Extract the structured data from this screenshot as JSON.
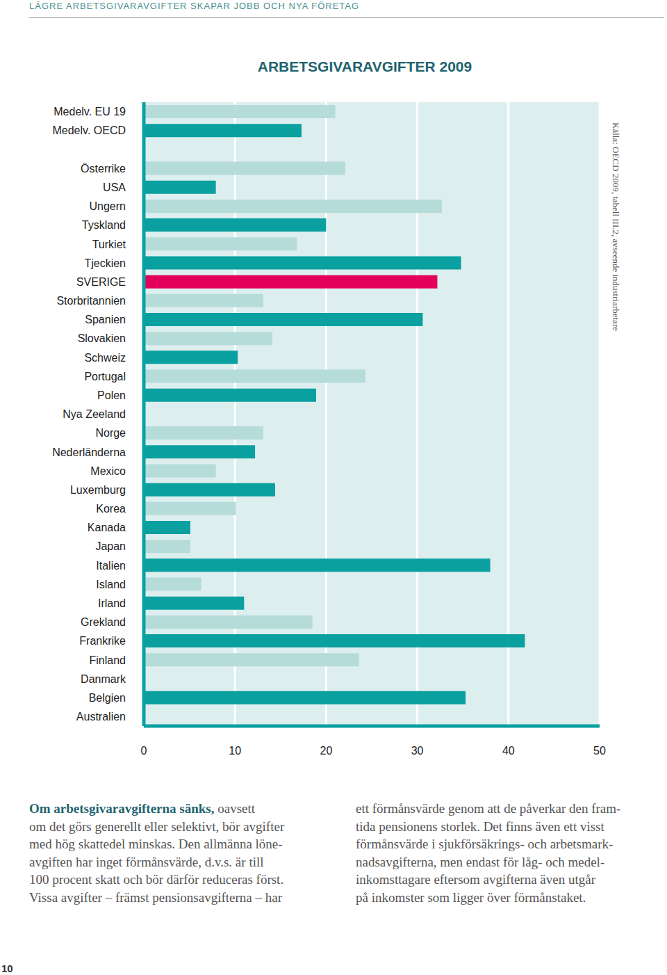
{
  "header": "LÄGRE ARBETSGIVARAVGIFTER SKAPAR JOBB OCH NYA FÖRETAG",
  "chart_data": {
    "type": "bar",
    "title": "ARBETSGIVARAVGIFTER 2009",
    "orientation": "horizontal",
    "grid": true,
    "categories": [
      "Medelv. EU 19",
      "Medelv. OECD",
      null,
      "Österrike",
      "USA",
      "Ungern",
      "Tyskland",
      "Turkiet",
      "Tjeckien",
      "SVERIGE",
      "Storbritannien",
      "Spanien",
      "Slovakien",
      "Schweiz",
      "Portugal",
      "Polen",
      "Nya Zeeland",
      "Norge",
      "Nederländerna",
      "Mexico",
      "Luxemburg",
      "Korea",
      "Kanada",
      "Japan",
      "Italien",
      "Island",
      "Irland",
      "Grekland",
      "Frankrike",
      "Finland",
      "Danmark",
      "Belgien",
      "Australien"
    ],
    "values": [
      21.0,
      17.3,
      null,
      22.1,
      7.9,
      32.7,
      20.0,
      16.8,
      34.8,
      32.2,
      13.1,
      30.6,
      14.1,
      10.3,
      24.3,
      18.9,
      0,
      13.1,
      12.2,
      7.9,
      14.4,
      10.1,
      5.1,
      5.1,
      38.0,
      6.3,
      11.0,
      18.5,
      41.8,
      23.6,
      0,
      35.3,
      0
    ],
    "colors": [
      "#b5dcd9",
      "#0aa0a0",
      "#b5dcd9",
      "#b5dcd9",
      "#0aa0a0",
      "#b5dcd9",
      "#0aa0a0",
      "#b5dcd9",
      "#0aa0a0",
      "#e2005a",
      "#b5dcd9",
      "#0aa0a0",
      "#b5dcd9",
      "#0aa0a0",
      "#b5dcd9",
      "#0aa0a0",
      "#b5dcd9",
      "#b5dcd9",
      "#0aa0a0",
      "#b5dcd9",
      "#0aa0a0",
      "#b5dcd9",
      "#0aa0a0",
      "#b5dcd9",
      "#0aa0a0",
      "#b5dcd9",
      "#0aa0a0",
      "#b5dcd9",
      "#0aa0a0",
      "#b5dcd9",
      "#0aa0a0",
      "#0aa0a0",
      "#b5dcd9"
    ],
    "xlim": [
      0,
      50
    ],
    "xticks": [
      0,
      10,
      20,
      30,
      40,
      50
    ],
    "annotations": [
      "Källa: OECD 2009, tabell III.2, avseende industriarbetare"
    ]
  },
  "text": {
    "lead": "Om arbetsgivaravgifterna sänks,",
    "columns": [
      [
        " oavsett",
        "om det görs generellt eller selektivt, bör avgifter",
        "med hög skattedel minskas. Den allmänna löne-",
        "avgiften har inget förmånsvärde, d.v.s. är till",
        "100 procent skatt och bör därför reduceras först.",
        "Vissa avgifter – främst pensionsavgifterna – har"
      ],
      [
        "ett förmånsvärde genom att de påverkar den fram-",
        "tida pensionens storlek. Det finns även ett visst",
        "förmånsvärde i sjukförsäkrings- och arbetsmark-",
        "nadsavgifterna, men endast för låg- och medel-",
        "inkomsttagare eftersom avgifterna även utgår",
        "på inkomster som ligger över förmånstaket."
      ]
    ]
  },
  "page_number": "10"
}
